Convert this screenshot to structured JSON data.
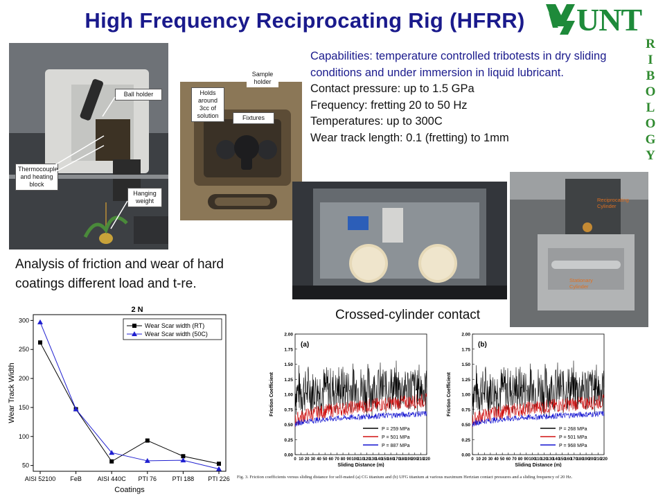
{
  "title": "High Frequency Reciprocating Rig (HFRR)",
  "logo": {
    "text": "UNT",
    "vertical": [
      "T",
      "R",
      "I",
      "B",
      "O",
      "L",
      "O",
      "G",
      "Y"
    ]
  },
  "photo1": {
    "callouts": {
      "ball_holder": "Ball holder",
      "thermocouple": "Thermocouple and heating block",
      "weight": "Hanging weight"
    }
  },
  "photo2": {
    "callouts": {
      "sample_holder": "Sample holder",
      "holds": "Holds around 3cc of solution",
      "fixtures": "Fixtures"
    }
  },
  "photo4": {
    "labels": {
      "top": "Reciprocating Cylinder",
      "bottom": "Stationary Cylinder"
    }
  },
  "capabilities": {
    "line1": "Capabilities: temperature controlled tribotests in dry sliding conditions and under immersion in liquid lubricant.",
    "line2": "Contact pressure: up to 1.5 GPa",
    "line3": "Frequency: fretting 20 to 50 Hz",
    "line4": "Temperatures: up to 300C",
    "line5": "Wear track length: 0.1 (fretting) to 1mm"
  },
  "analysis_text": "Analysis of friction and wear of hard coatings different load and t-re.",
  "crossed_label": "Crossed-cylinder contact",
  "wear_chart": {
    "chart_data": {
      "type": "line",
      "title": "2 N",
      "xlabel": "Coatings",
      "ylabel": "Wear Track Width",
      "categories": [
        "AISI 52100",
        "FeB",
        "AISI 440C",
        "PTI 76",
        "PTI 188",
        "PTI 226"
      ],
      "ylim": [
        40,
        310
      ],
      "yticks": [
        50,
        100,
        150,
        200,
        250,
        300
      ],
      "legend": "top-right",
      "series": [
        {
          "name": "Wear Scar width (RT)",
          "color": "#000000",
          "marker": "square",
          "values": [
            262,
            147,
            57,
            93,
            66,
            53
          ]
        },
        {
          "name": "Wear Scar width (50C)",
          "color": "#1f1fd0",
          "marker": "triangle",
          "values": [
            297,
            147,
            72,
            58,
            59,
            44
          ]
        }
      ]
    }
  },
  "friction_charts": {
    "chart_data": [
      {
        "type": "line",
        "panel": "(a)",
        "xlabel": "Sliding Distance (m)",
        "ylabel": "Friction Coefficient",
        "xlim": [
          0,
          220
        ],
        "ylim": [
          0,
          2.0
        ],
        "xticks": [
          0,
          10,
          20,
          30,
          40,
          50,
          60,
          70,
          80,
          90,
          100,
          110,
          120,
          130,
          140,
          150,
          160,
          170,
          180,
          190,
          200,
          210,
          220
        ],
        "yticks": [
          0.0,
          0.25,
          0.5,
          0.75,
          1.0,
          1.25,
          1.5,
          1.75,
          2.0
        ],
        "legend": "bottom-right",
        "series": [
          {
            "name": "P = 259 MPa",
            "color": "#000000",
            "x": [
              0,
              220
            ],
            "y": [
              1.05,
              1.1
            ]
          },
          {
            "name": "P = 501 MPa",
            "color": "#d01010",
            "x": [
              0,
              220
            ],
            "y": [
              0.55,
              0.9
            ]
          },
          {
            "name": "P = 887 MPa",
            "color": "#1010d0",
            "x": [
              0,
              220
            ],
            "y": [
              0.5,
              0.68
            ]
          }
        ]
      },
      {
        "type": "line",
        "panel": "(b)",
        "xlabel": "Sliding Distance (m)",
        "ylabel": "Friction Coefficient",
        "xlim": [
          0,
          220
        ],
        "ylim": [
          0,
          2.0
        ],
        "xticks": [
          0,
          10,
          20,
          30,
          40,
          50,
          60,
          70,
          80,
          90,
          100,
          110,
          120,
          130,
          140,
          150,
          160,
          170,
          180,
          190,
          200,
          210,
          220
        ],
        "yticks": [
          0.0,
          0.25,
          0.5,
          0.75,
          1.0,
          1.25,
          1.5,
          1.75,
          2.0
        ],
        "legend": "bottom-right",
        "series": [
          {
            "name": "P = 268 MPa",
            "color": "#000000",
            "x": [
              0,
              220
            ],
            "y": [
              1.05,
              1.1
            ]
          },
          {
            "name": "P = 501 MPa",
            "color": "#d01010",
            "x": [
              0,
              220
            ],
            "y": [
              0.55,
              0.88
            ]
          },
          {
            "name": "P = 968 MPa",
            "color": "#1010d0",
            "x": [
              0,
              220
            ],
            "y": [
              0.5,
              0.68
            ]
          }
        ]
      }
    ],
    "caption": "Fig. 3. Friction coefficients versus sliding distance for self-mated (a) CG titanium and (b) UFG titanium at various maximum Hertzian contact pressures and a sliding frequency of 20 Hz."
  }
}
